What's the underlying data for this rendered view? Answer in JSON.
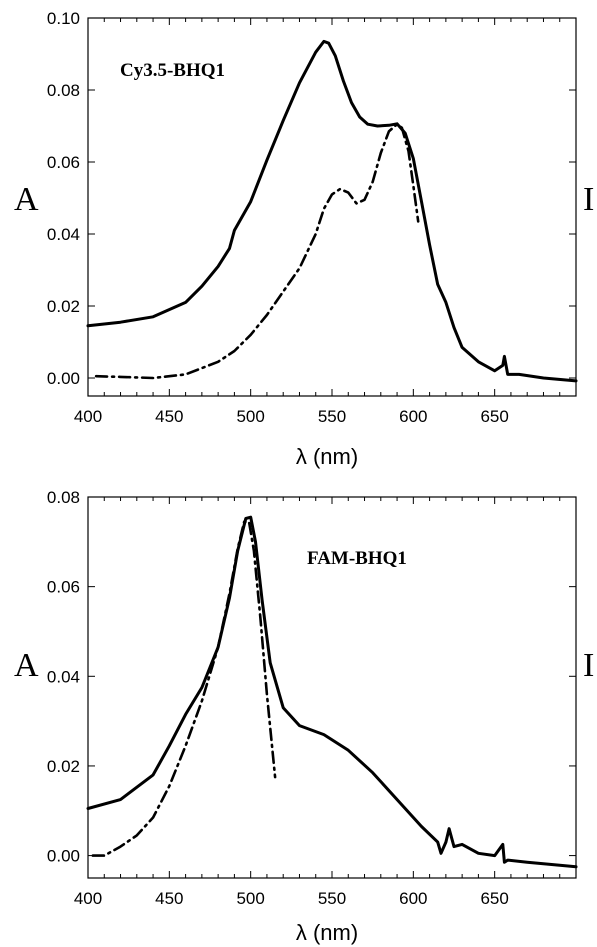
{
  "chart_data": [
    {
      "type": "line",
      "title": "Cy3.5-BHQ1",
      "xlabel": "λ (nm)",
      "ylabel": "A",
      "ylabel_right": "I",
      "xlim": [
        400,
        700
      ],
      "ylim": [
        -0.005,
        0.1
      ],
      "xticks": [
        400,
        450,
        500,
        550,
        600,
        650
      ],
      "xtick_labels": [
        "400",
        "450",
        "500",
        "550",
        "600",
        "650"
      ],
      "yticks": [
        0,
        0.02,
        0.04,
        0.06,
        0.08,
        0.1
      ],
      "ytick_labels": [
        "0.00",
        "0.02",
        "0.04",
        "0.06",
        "0.08",
        "0.10"
      ],
      "grid": false,
      "legend": "none",
      "series": [
        {
          "style": "solid",
          "x": [
            400,
            420,
            440,
            460,
            470,
            480,
            487,
            490,
            500,
            510,
            520,
            530,
            540,
            545,
            548,
            552,
            557,
            562,
            567,
            572,
            578,
            585,
            590,
            595,
            600,
            605,
            610,
            615,
            620,
            625,
            630,
            640,
            650,
            655,
            656,
            658,
            665,
            680,
            700
          ],
          "y": [
            0.0145,
            0.0155,
            0.017,
            0.021,
            0.0255,
            0.031,
            0.036,
            0.041,
            0.049,
            0.0605,
            0.0715,
            0.082,
            0.0905,
            0.0935,
            0.093,
            0.0895,
            0.0825,
            0.0765,
            0.0725,
            0.0705,
            0.07,
            0.0702,
            0.0706,
            0.068,
            0.061,
            0.049,
            0.037,
            0.026,
            0.021,
            0.014,
            0.0085,
            0.0045,
            0.002,
            0.0035,
            0.006,
            0.001,
            0.001,
            0.0,
            -0.0008
          ]
        },
        {
          "style": "dash-dot",
          "x": [
            405,
            420,
            440,
            460,
            480,
            490,
            500,
            510,
            520,
            530,
            540,
            545,
            550,
            555,
            560,
            565,
            570,
            575,
            580,
            585,
            590,
            593,
            597,
            600,
            603
          ],
          "y": [
            0.0005,
            0.0003,
            0.0,
            0.001,
            0.0045,
            0.0075,
            0.012,
            0.0175,
            0.024,
            0.0305,
            0.04,
            0.047,
            0.051,
            0.0525,
            0.0515,
            0.0485,
            0.0495,
            0.0545,
            0.0625,
            0.0685,
            0.0705,
            0.0695,
            0.063,
            0.0535,
            0.0435
          ]
        }
      ]
    },
    {
      "type": "line",
      "title": "FAM-BHQ1",
      "xlabel": "λ (nm)",
      "ylabel": "A",
      "ylabel_right": "I",
      "xlim": [
        400,
        700
      ],
      "ylim": [
        -0.005,
        0.08
      ],
      "xticks": [
        400,
        450,
        500,
        550,
        600,
        650
      ],
      "xtick_labels": [
        "400",
        "450",
        "500",
        "550",
        "600",
        "650"
      ],
      "yticks": [
        0,
        0.02,
        0.04,
        0.06,
        0.08
      ],
      "ytick_labels": [
        "0.00",
        "0.02",
        "0.04",
        "0.06",
        "0.08"
      ],
      "grid": false,
      "legend": "none",
      "series": [
        {
          "style": "solid",
          "x": [
            400,
            420,
            440,
            450,
            460,
            470,
            480,
            487,
            492,
            497,
            500,
            503,
            507,
            512,
            520,
            530,
            545,
            560,
            575,
            590,
            605,
            615,
            617,
            620,
            622,
            625,
            630,
            640,
            650,
            655,
            656,
            658,
            670,
            700
          ],
          "y": [
            0.0105,
            0.0125,
            0.018,
            0.0245,
            0.0315,
            0.0375,
            0.0465,
            0.0575,
            0.068,
            0.0752,
            0.0755,
            0.07,
            0.057,
            0.043,
            0.033,
            0.029,
            0.027,
            0.0235,
            0.0185,
            0.0125,
            0.0065,
            0.003,
            0.0005,
            0.003,
            0.006,
            0.002,
            0.0025,
            0.0005,
            0.0,
            0.0025,
            -0.0015,
            -0.001,
            -0.0015,
            -0.0025
          ]
        },
        {
          "style": "dash-dot",
          "x": [
            403,
            410,
            420,
            430,
            440,
            450,
            460,
            470,
            480,
            487,
            492,
            496,
            499,
            502,
            506,
            510,
            515
          ],
          "y": [
            0.0,
            0.0,
            0.002,
            0.0045,
            0.0085,
            0.0155,
            0.0245,
            0.0345,
            0.0465,
            0.0585,
            0.0685,
            0.0745,
            0.0745,
            0.068,
            0.053,
            0.036,
            0.0175
          ]
        }
      ]
    }
  ]
}
